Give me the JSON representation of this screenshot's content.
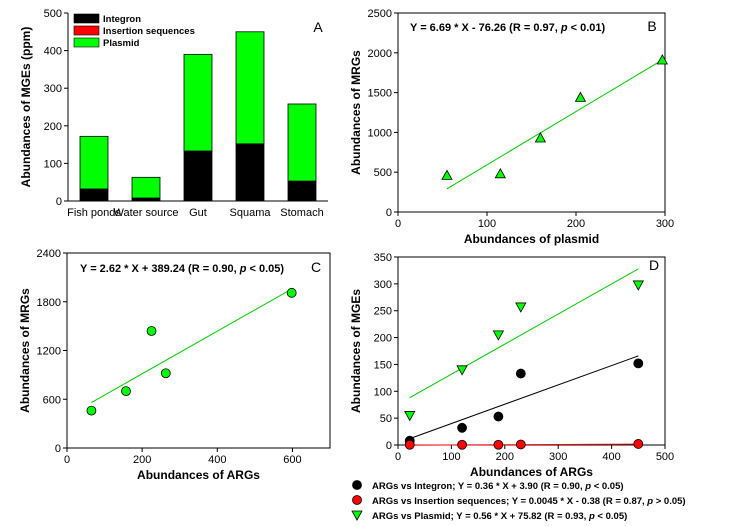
{
  "chart_data": [
    {
      "panel": "A",
      "type": "bar",
      "stacked": true,
      "categories": [
        "Fish ponds",
        "Water source",
        "Gut",
        "Squama",
        "Stomach"
      ],
      "series": [
        {
          "name": "Integron",
          "color": "#000000",
          "values": [
            32,
            8,
            133,
            152,
            53
          ]
        },
        {
          "name": "Insertion sequences",
          "color": "#ff0000",
          "values": [
            0,
            0,
            0,
            0,
            0
          ]
        },
        {
          "name": "Plasmid",
          "color": "#00ff00",
          "values": [
            140,
            55,
            257,
            298,
            205
          ]
        }
      ],
      "ylabel": "Abundances of MGEs (ppm)",
      "xlabel": "",
      "ylim": [
        0,
        500
      ],
      "yticks": [
        "0",
        "100",
        "200",
        "300",
        "400",
        "500"
      ],
      "legend": "top-left"
    },
    {
      "panel": "B",
      "type": "scatter",
      "equation": "Y = 6.69 * X - 76.26 (R = 0.97, p < 0.01)",
      "x": [
        55,
        115,
        160,
        205,
        297
      ],
      "y": [
        460,
        480,
        930,
        1440,
        1910
      ],
      "fit": {
        "slope": 6.69,
        "intercept": -76.26
      },
      "marker": "triangle-up",
      "color": "#00ff00",
      "xlabel": "Abundances of plasmid",
      "ylabel": "Abundances of MRGs",
      "xlim": [
        0,
        300
      ],
      "ylim": [
        0,
        2500
      ],
      "xticks": [
        "0",
        "100",
        "200",
        "300"
      ],
      "yticks": [
        "0",
        "500",
        "1000",
        "1500",
        "2000",
        "2500"
      ]
    },
    {
      "panel": "C",
      "type": "scatter",
      "equation": "Y = 2.62 * X + 389.24 (R = 0.90, p < 0.05)",
      "x": [
        65,
        157,
        225,
        263,
        598
      ],
      "y": [
        460,
        700,
        1440,
        920,
        1910
      ],
      "fit": {
        "slope": 2.62,
        "intercept": 389.24
      },
      "marker": "circle",
      "color": "#00ff00",
      "xlabel": "Abundances of ARGs",
      "ylabel": "Abundances of MRGs",
      "xlim": [
        0,
        700
      ],
      "ylim": [
        0,
        2400
      ],
      "xticks": [
        "0",
        "200",
        "400",
        "600"
      ],
      "yticks": [
        "0",
        "600",
        "1200",
        "1800",
        "2400"
      ]
    },
    {
      "panel": "D",
      "type": "scatter",
      "xlabel": "Abundances of ARGs",
      "ylabel": "Abundances of MGEs",
      "xlim": [
        0,
        500
      ],
      "ylim": [
        0,
        350
      ],
      "xticks": [
        "0",
        "100",
        "200",
        "300",
        "400",
        "500"
      ],
      "yticks": [
        "0",
        "50",
        "100",
        "150",
        "200",
        "250",
        "300",
        "350"
      ],
      "series": [
        {
          "name": "ARGs vs Integron",
          "equation": "Y = 0.36 * X + 3.90 (R = 0.90, p < 0.05)",
          "marker": "circle",
          "color": "#000000",
          "x": [
            22,
            120,
            188,
            230,
            450
          ],
          "y": [
            8,
            32,
            53,
            133,
            152
          ],
          "fit": {
            "slope": 0.36,
            "intercept": 3.9
          }
        },
        {
          "name": "ARGs vs Insertion sequences",
          "equation": "Y = 0.0045 * X - 0.38 (R = 0.87, p > 0.05)",
          "marker": "circle",
          "color": "#ff0000",
          "x": [
            22,
            120,
            188,
            230,
            450
          ],
          "y": [
            0.5,
            0.5,
            0.5,
            1,
            2
          ],
          "fit": {
            "slope": 0.0045,
            "intercept": -0.38
          }
        },
        {
          "name": "ARGs vs Plasmid",
          "equation": "Y = 0.56 * X + 75.82 (R = 0.93, p < 0.05)",
          "marker": "triangle-down",
          "color": "#00ff00",
          "x": [
            22,
            120,
            188,
            230,
            450
          ],
          "y": [
            55,
            140,
            205,
            257,
            298
          ],
          "fit": {
            "slope": 0.56,
            "intercept": 75.82
          }
        }
      ],
      "legend": "bottom"
    }
  ]
}
